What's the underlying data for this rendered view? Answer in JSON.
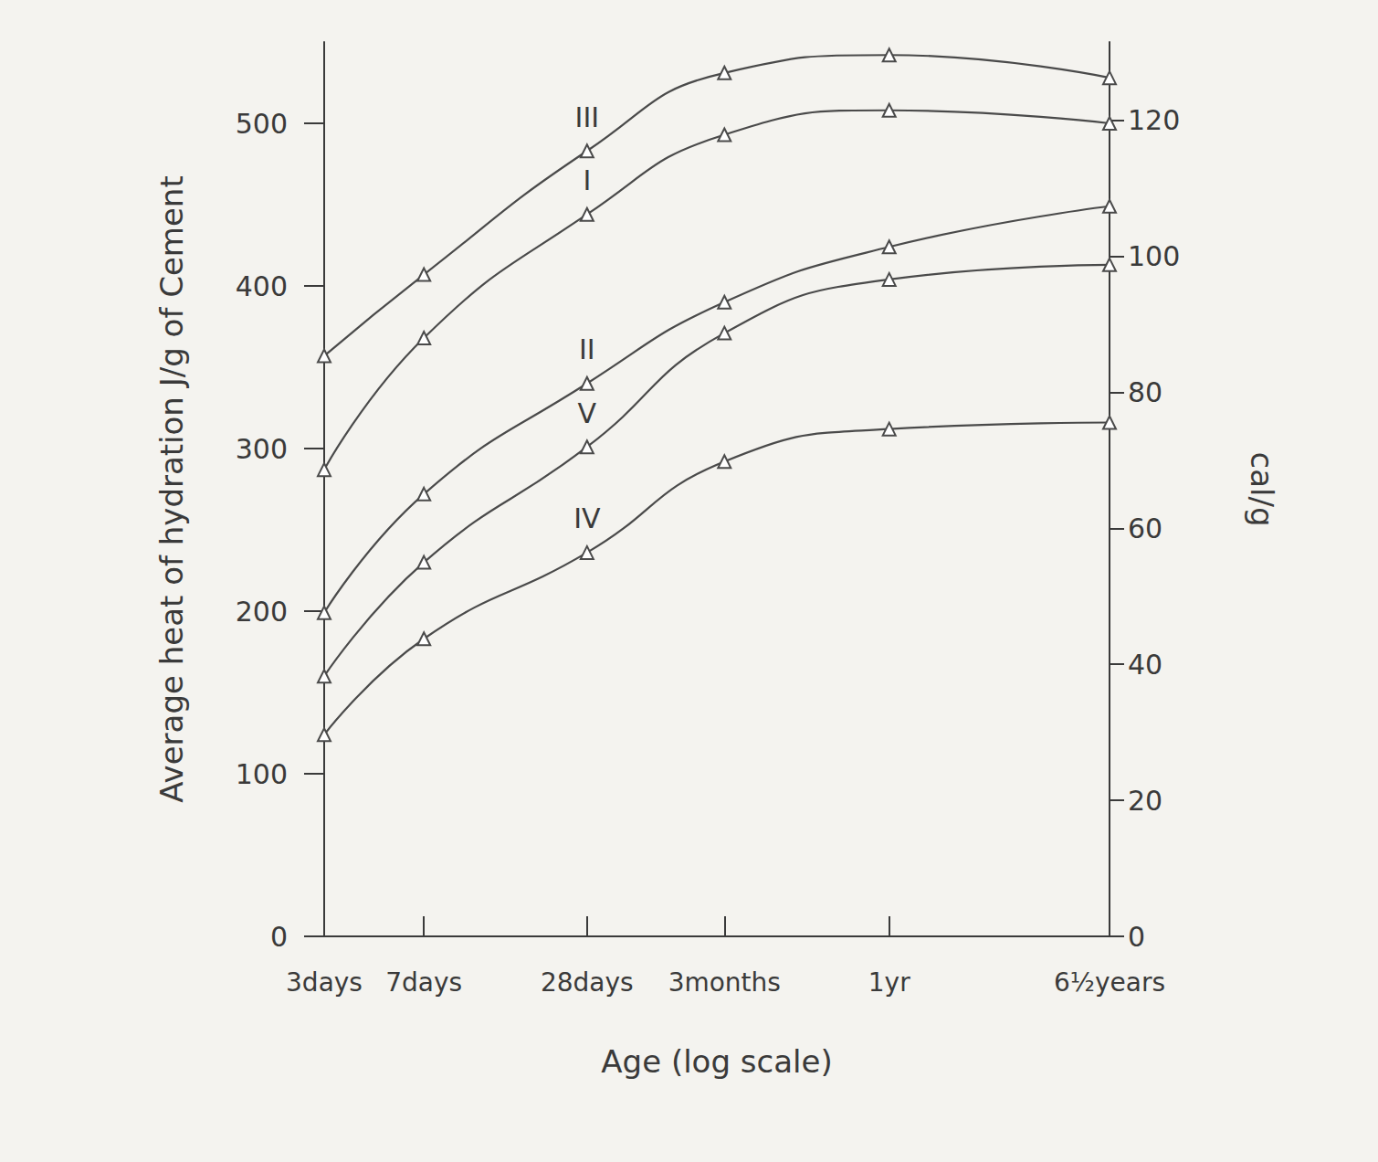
{
  "chart_data": {
    "type": "line",
    "log": "x",
    "grid": false,
    "x_label": "Age (log scale)",
    "y_label": "Average heat of hydration J/g of Cement",
    "y2_label": "cal/g",
    "x": [
      3,
      7,
      28,
      90,
      365,
      2374
    ],
    "xlim": [
      3,
      2374
    ],
    "xticks": [
      {
        "value": 3,
        "label": "3days"
      },
      {
        "value": 7,
        "label": "7days"
      },
      {
        "value": 28,
        "label": "28days"
      },
      {
        "value": 90,
        "label": "3months"
      },
      {
        "value": 365,
        "label": "1yr"
      },
      {
        "value": 2374,
        "label": "6½years"
      }
    ],
    "ylim": [
      0,
      550
    ],
    "yticks": [
      0,
      100,
      200,
      300,
      400,
      500
    ],
    "y2lim": [
      0,
      131.5
    ],
    "y2ticks": [
      0,
      20,
      40,
      60,
      80,
      100,
      120
    ],
    "color": "#4a4a4a",
    "series": [
      {
        "name": "III",
        "color": "#4a4a4a",
        "marker": "triangle",
        "values": [
          357,
          407,
          483,
          531,
          542,
          528
        ]
      },
      {
        "name": "I",
        "color": "#4a4a4a",
        "marker": "triangle",
        "values": [
          287,
          368,
          444,
          493,
          508,
          500
        ]
      },
      {
        "name": "II",
        "color": "#4a4a4a",
        "marker": "triangle",
        "values": [
          199,
          272,
          340,
          390,
          424,
          449
        ]
      },
      {
        "name": "V",
        "color": "#4a4a4a",
        "marker": "triangle",
        "values": [
          160,
          230,
          301,
          371,
          404,
          413
        ]
      },
      {
        "name": "IV",
        "color": "#4a4a4a",
        "marker": "triangle",
        "values": [
          124,
          183,
          236,
          292,
          312,
          316
        ]
      }
    ]
  }
}
